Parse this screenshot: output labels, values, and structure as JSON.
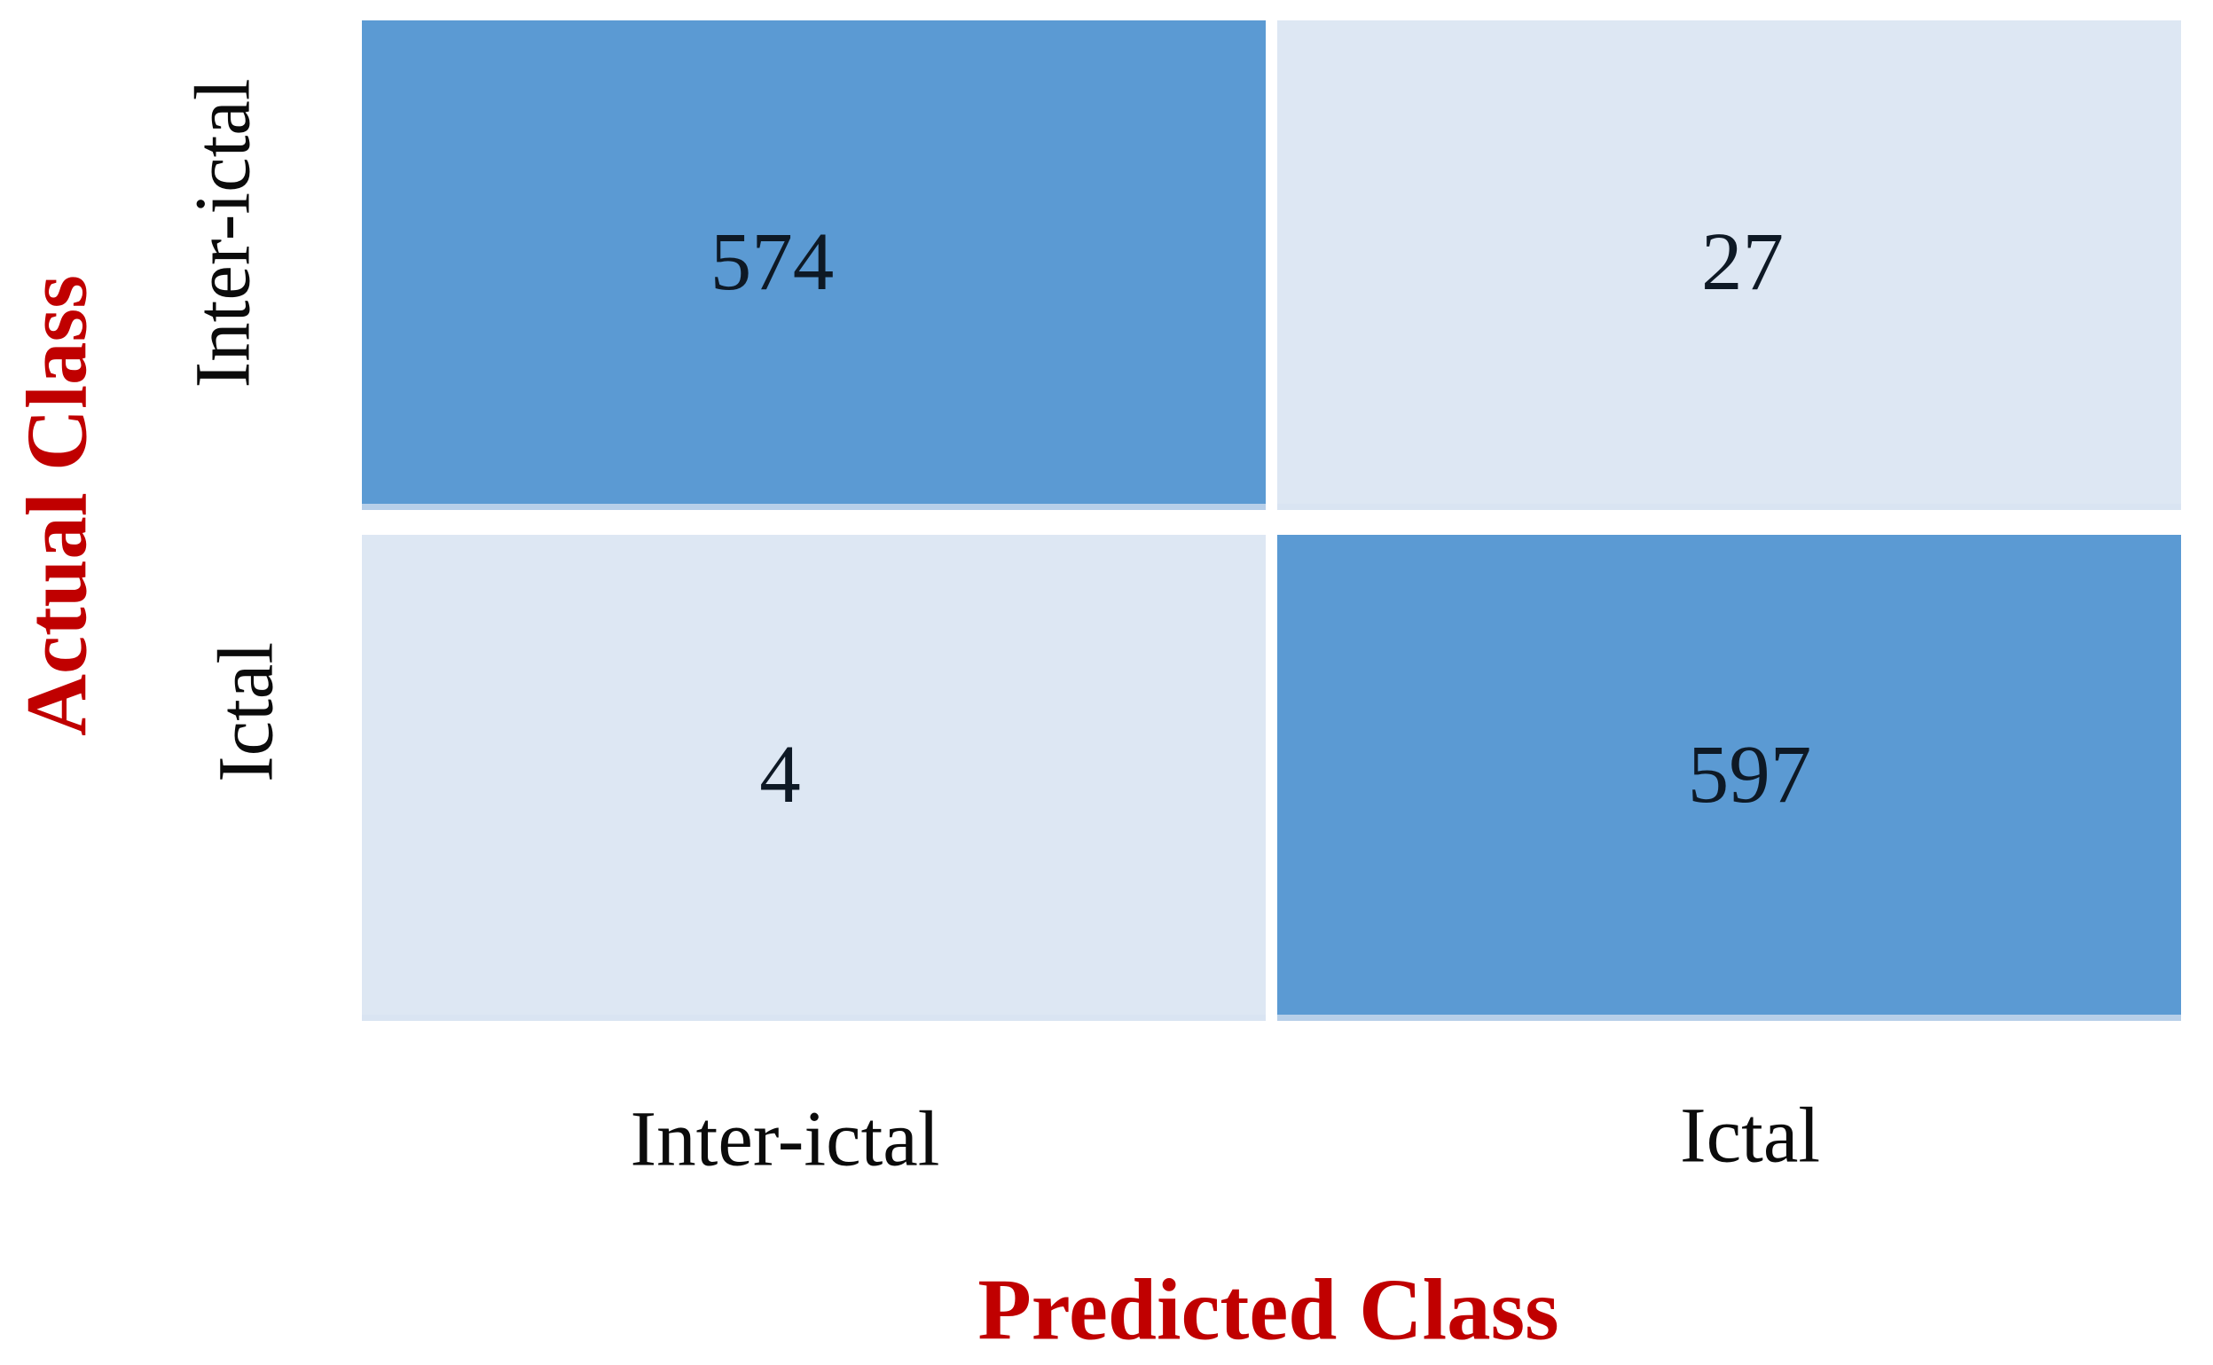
{
  "figure": {
    "kind": "confusion-matrix"
  },
  "chart_data": {
    "type": "heatmap",
    "title": "",
    "xlabel": "Predicted Class",
    "ylabel": "Actual Class",
    "row_labels": [
      "Inter-ictal",
      "Ictal"
    ],
    "col_labels": [
      "Inter-ictal",
      "Ictal"
    ],
    "matrix": [
      [
        574,
        27
      ],
      [
        4,
        597
      ]
    ],
    "cells": [
      {
        "actual": "Inter-ictal",
        "predicted": "Inter-ictal",
        "value": 574,
        "shade": "high"
      },
      {
        "actual": "Inter-ictal",
        "predicted": "Ictal",
        "value": 27,
        "shade": "low"
      },
      {
        "actual": "Ictal",
        "predicted": "Inter-ictal",
        "value": 4,
        "shade": "low"
      },
      {
        "actual": "Ictal",
        "predicted": "Ictal",
        "value": 597,
        "shade": "high"
      }
    ],
    "legend": "none",
    "grid": "off"
  },
  "colors": {
    "cell_high": "#5b9ad3",
    "cell_low": "#dde7f3",
    "axis_label_red": "#c00000",
    "value_text": "#0e1925",
    "background": "#ffffff"
  }
}
